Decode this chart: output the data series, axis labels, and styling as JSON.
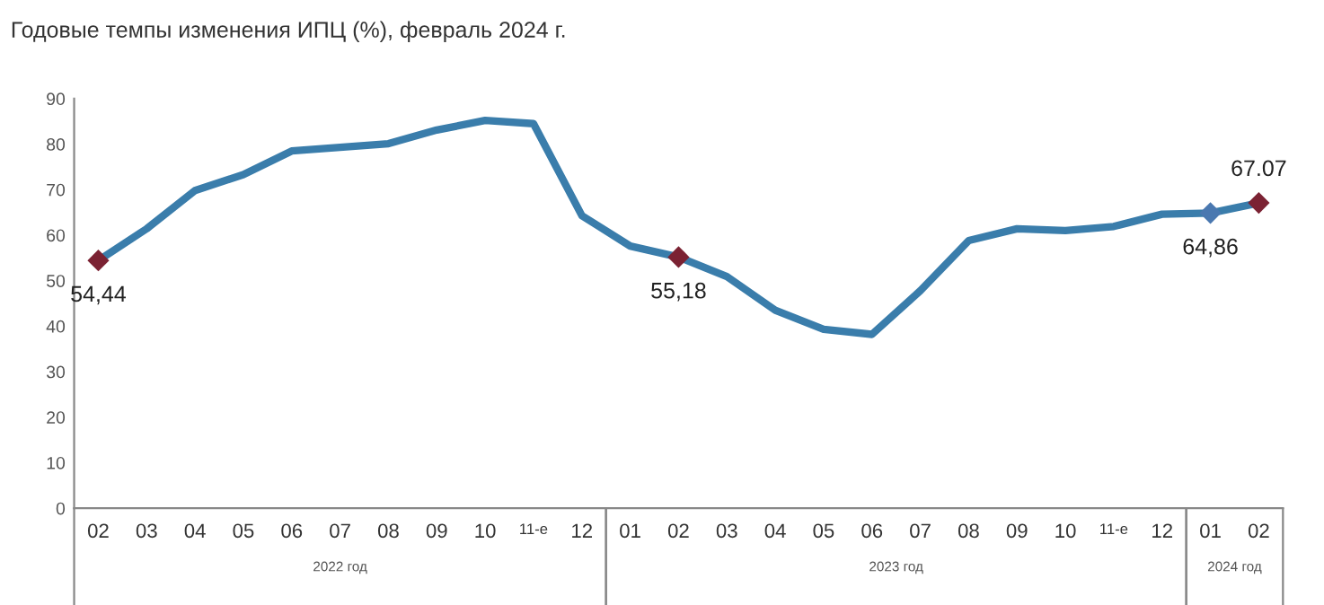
{
  "chart_data": {
    "type": "line",
    "title": "Годовые темпы изменения ИПЦ (%), февраль 2024 г.",
    "categories": [
      "02",
      "03",
      "04",
      "05",
      "06",
      "07",
      "08",
      "09",
      "10",
      "11-е",
      "12",
      "01",
      "02",
      "03",
      "04",
      "05",
      "06",
      "07",
      "08",
      "09",
      "10",
      "11-е",
      "12",
      "01",
      "02"
    ],
    "series": [
      {
        "color": "#3a7dab",
        "values": [
          54.44,
          61.4,
          69.8,
          73.3,
          78.5,
          79.3,
          80.1,
          83.1,
          85.2,
          84.5,
          64.3,
          57.6,
          55.18,
          50.9,
          43.5,
          39.3,
          38.2,
          47.8,
          58.8,
          61.4,
          61.0,
          61.9,
          64.6,
          64.86,
          67.07
        ]
      },
      {
        "type": "scatter",
        "marker": "diamond",
        "colors": [
          "#7b2233",
          null,
          null,
          null,
          null,
          null,
          null,
          null,
          null,
          null,
          null,
          null,
          "#7b2233",
          null,
          null,
          null,
          null,
          null,
          null,
          null,
          null,
          null,
          null,
          "#4a78b0",
          "#7b2233"
        ],
        "values": [
          54.44,
          null,
          null,
          null,
          null,
          null,
          null,
          null,
          null,
          null,
          null,
          null,
          55.18,
          null,
          null,
          null,
          null,
          null,
          null,
          null,
          null,
          null,
          null,
          64.86,
          67.07
        ],
        "value_labels": [
          "54,44",
          null,
          null,
          null,
          null,
          null,
          null,
          null,
          null,
          null,
          null,
          null,
          "55,18",
          null,
          null,
          null,
          null,
          null,
          null,
          null,
          null,
          null,
          null,
          "64,86",
          "67.07"
        ]
      }
    ],
    "ylim": [
      0,
      90
    ],
    "yticks": [
      0,
      10,
      20,
      30,
      40,
      50,
      60,
      70,
      80,
      90
    ],
    "grid": false,
    "annotations": [
      "2022 год",
      "2023 год",
      "2024 год"
    ]
  }
}
